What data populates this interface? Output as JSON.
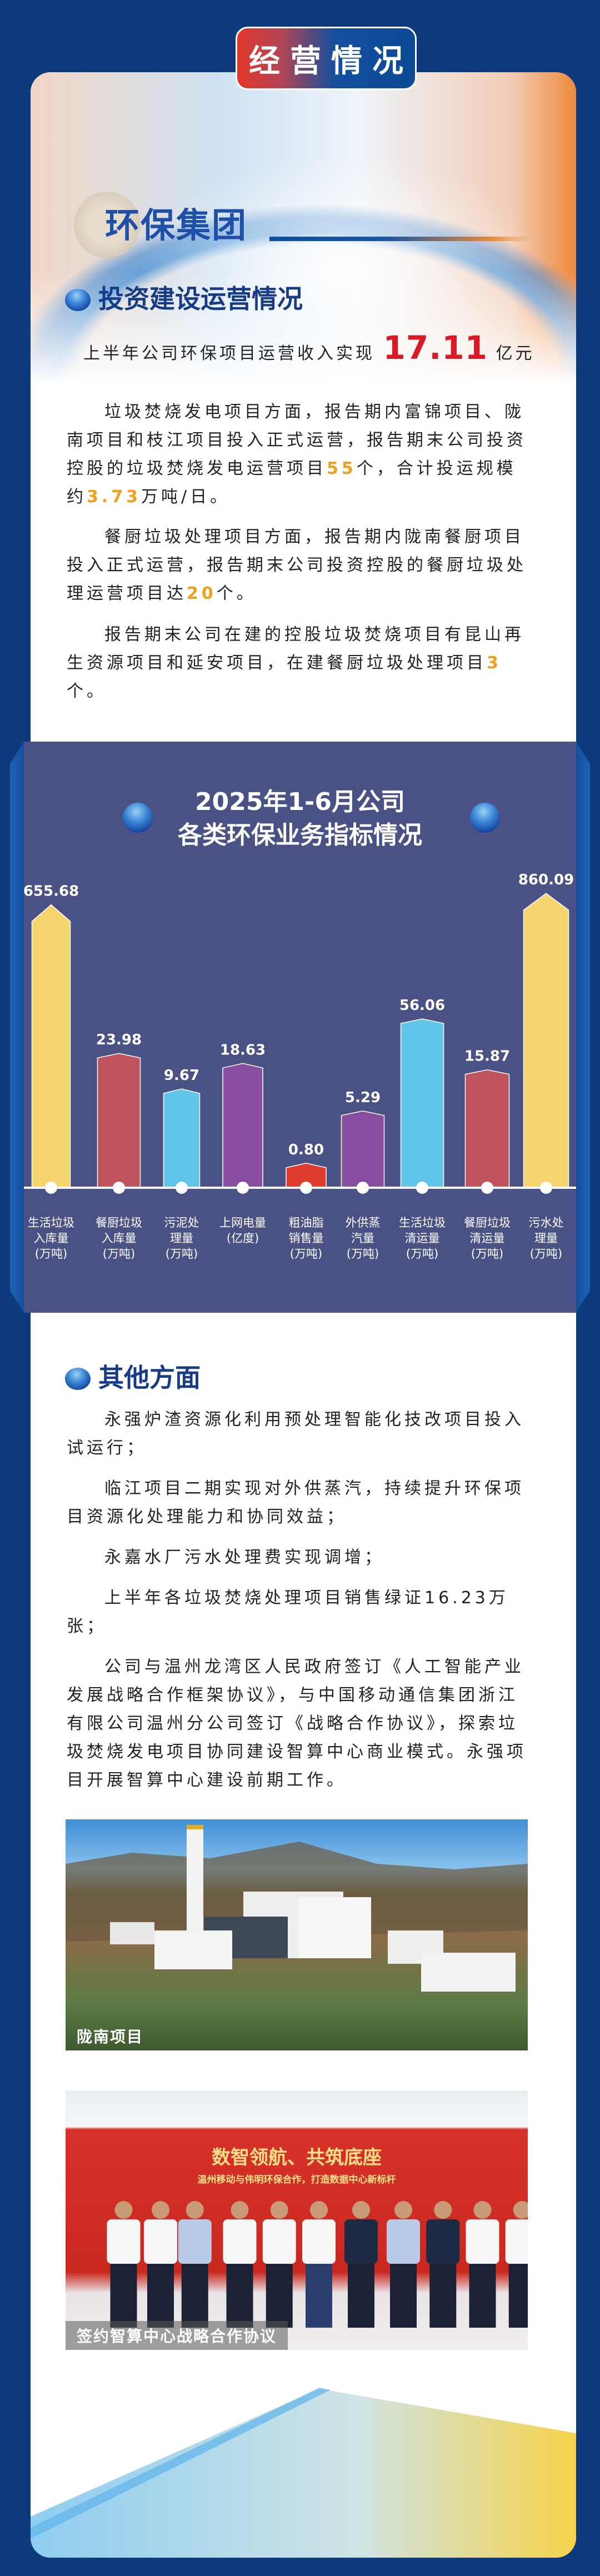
{
  "banner": {
    "title": "经营情况"
  },
  "section": {
    "title": "环保集团"
  },
  "invest": {
    "heading": "投资建设运营情况",
    "revenue_prefix": "上半年公司环保项目运营收入实现",
    "revenue_value": "17.11",
    "revenue_unit": "亿元",
    "p1": {
      "a": "垃圾焚烧发电项目方面，报告期内富锦项目、陇南项目和枝江项目投入正式运营，报告期末公司投资控股的垃圾焚烧发电运营项目",
      "n1": "55",
      "b": "个，合计投运规模约",
      "n2": "3.73",
      "c": "万吨/日。"
    },
    "p2": {
      "a": "餐厨垃圾处理项目方面，报告期内陇南餐厨项目投入正式运营，报告期末公司投资控股的餐厨垃圾处理运营项目达",
      "n1": "20",
      "b": "个。"
    },
    "p3": {
      "a": "报告期末公司在建的控股垃圾焚烧项目有昆山再生资源项目和延安项目，在建餐厨垃圾处理项目",
      "n1": "3",
      "b": "个。"
    }
  },
  "chart_data": {
    "type": "bar",
    "title_line1": "2025年1-6月公司",
    "title_line2": "各类环保业务指标情况",
    "categories": [
      [
        "生活垃圾",
        "入库量",
        "(万吨)"
      ],
      [
        "餐厨垃圾",
        "入库量",
        "(万吨)"
      ],
      [
        "污泥处",
        "理量",
        "(万吨)"
      ],
      [
        "上网电量",
        "(亿度)"
      ],
      [
        "粗油脂",
        "销售量",
        "(万吨)"
      ],
      [
        "外供蒸",
        "汽量",
        "(万吨)"
      ],
      [
        "生活垃圾",
        "清运量",
        "(万吨)"
      ],
      [
        "餐厨垃圾",
        "清运量",
        "(万吨)"
      ],
      [
        "污水处",
        "理量",
        "(万吨)"
      ]
    ],
    "values": [
      655.68,
      23.98,
      9.67,
      18.63,
      0.8,
      5.29,
      56.06,
      15.87,
      860.09
    ],
    "value_labels": [
      "655.68",
      "23.98",
      "9.67",
      "18.63",
      "0.80",
      "5.29",
      "56.06",
      "15.87",
      "860.09"
    ],
    "colors": [
      "#f6d46e",
      "#c0545e",
      "#5ec5e8",
      "#874ea0",
      "#de3a2e",
      "#874ea0",
      "#5ec5e8",
      "#c0545e",
      "#f6d46e"
    ],
    "scale": "non-linear (illustrative)",
    "grid": false
  },
  "other": {
    "heading": "其他方面",
    "paragraphs": [
      "永强炉渣资源化利用预处理智能化技改项目投入试运行；",
      "临江项目二期实现对外供蒸汽，持续提升环保项目资源化处理能力和协同效益；",
      "永嘉水厂污水处理费实现调增；",
      "上半年各垃圾焚烧处理项目销售绿证16.23万张；",
      "公司与温州龙湾区人民政府签订《人工智能产业发展战略合作框架协议》，与中国移动通信集团浙江有限公司温州分公司签订《战略合作协议》，探索垃圾焚烧发电项目协同建设智算中心商业模式。永强项目开展智算中心建设前期工作。"
    ]
  },
  "photos": [
    {
      "caption": "陇南项目"
    },
    {
      "caption": "签约智算中心战略合作协议",
      "backdrop_title": "数智领航、共筑底座",
      "backdrop_subtitle": "温州移动与伟明环保合作，打造数据中心新标杆"
    }
  ],
  "colors": {
    "background": "#0c3a7b",
    "accent_red": "#d91a26",
    "accent_orange": "#f0a01c",
    "chart_panel": "#4a5185"
  }
}
